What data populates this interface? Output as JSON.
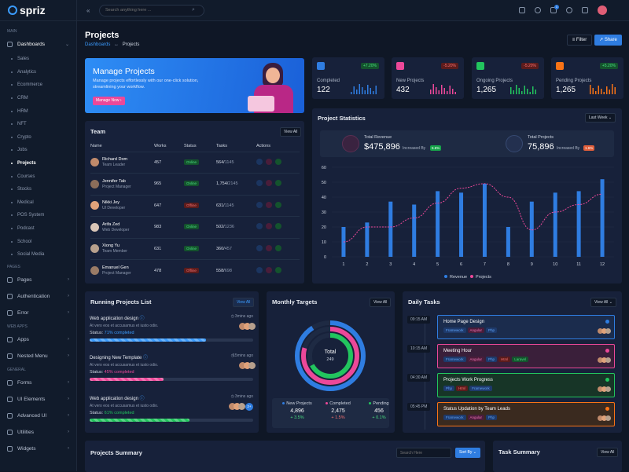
{
  "brand": "spriz",
  "search": {
    "placeholder": "Search anything here ..."
  },
  "sidebar": {
    "sections": [
      "MAIN",
      "PAGES",
      "WEB APPS",
      "GENERAL"
    ],
    "dashboards": "Dashboards",
    "sub": [
      "Sales",
      "Analytics",
      "Ecommerce",
      "CRM",
      "HRM",
      "NFT",
      "Crypto",
      "Jobs",
      "Projects",
      "Courses",
      "Stocks",
      "Medical",
      "POS System",
      "Podcast",
      "School",
      "Social Media"
    ],
    "pages": [
      "Pages",
      "Authentication",
      "Error"
    ],
    "apps": [
      "Apps",
      "Nested Menu"
    ],
    "general": [
      "Forms",
      "UI Elements",
      "Advanced UI",
      "Utilities",
      "Widgets"
    ]
  },
  "header": {
    "title": "Projects",
    "crumb1": "Dashboards",
    "crumb_sep": "↔",
    "crumb2": "Projects",
    "filter": "Filter",
    "share": "Share",
    "notif_count": "1"
  },
  "banner": {
    "title": "Manage Projects",
    "desc": "Manage projects effortlessly with our one-click solution, streamlining your workflow.",
    "btn": "Manage Now"
  },
  "stats": [
    {
      "label": "Completed",
      "value": "122",
      "change": "+7.20%",
      "color": "#2f7de1",
      "up": true
    },
    {
      "label": "New Projects",
      "value": "432",
      "change": "-5.20%",
      "color": "#ec4899",
      "up": false
    },
    {
      "label": "Ongoing Projects",
      "value": "1,265",
      "change": "-5.20%",
      "color": "#22c55e",
      "up": false
    },
    {
      "label": "Pending Projects",
      "value": "1,265",
      "change": "+5.20%",
      "color": "#f97316",
      "up": true
    }
  ],
  "team": {
    "title": "Team",
    "view_all": "View All",
    "cols": [
      "Name",
      "Works",
      "Status",
      "Tasks",
      "Actions"
    ],
    "rows": [
      {
        "name": "Richard Dom",
        "role": "Team Leader",
        "works": "457",
        "status": "Online",
        "done": "564/",
        "total": "1145"
      },
      {
        "name": "Jennifer Tab",
        "role": "Project Manager",
        "works": "965",
        "status": "Online",
        "done": "1,754/",
        "total": "2145"
      },
      {
        "name": "Nikki Jey",
        "role": "UI Developer",
        "works": "647",
        "status": "Offline",
        "done": "631/",
        "total": "1145"
      },
      {
        "name": "Arifa Zed",
        "role": "Web Developer",
        "works": "983",
        "status": "Online",
        "done": "502/",
        "total": "1236"
      },
      {
        "name": "Xiong Yu",
        "role": "Team Member",
        "works": "631",
        "status": "Online",
        "done": "360/",
        "total": "457"
      },
      {
        "name": "Emanuel Gen",
        "role": "Project Manager",
        "works": "478",
        "status": "Offline",
        "done": "558/",
        "total": "698"
      }
    ]
  },
  "stats_panel": {
    "title": "Project Statistics",
    "period": "Last Week",
    "rev_label": "Total Revenue",
    "rev_value": "$475,896",
    "rev_inc": "Increased By",
    "rev_pct": "5.6%",
    "proj_label": "Total Projects",
    "proj_value": "75,896",
    "proj_inc": "Increased By",
    "proj_pct": "1.6%"
  },
  "chart_data": {
    "type": "bar",
    "x": [
      1,
      2,
      3,
      4,
      5,
      6,
      7,
      8,
      9,
      10,
      11,
      12
    ],
    "ylim": [
      0,
      60
    ],
    "yticks": [
      0,
      10,
      20,
      30,
      40,
      50,
      60
    ],
    "series": [
      {
        "name": "Revenue",
        "type": "bar",
        "values": [
          20,
          23,
          37,
          35,
          44,
          43,
          49,
          20,
          37,
          43,
          44,
          52
        ]
      },
      {
        "name": "Projects",
        "type": "line",
        "values": [
          10,
          20,
          20,
          26,
          36,
          46,
          49,
          40,
          18,
          30,
          35,
          42
        ]
      }
    ]
  },
  "running": {
    "title": "Running Projects List",
    "view_all": "View All",
    "status_label": "Status:",
    "items": [
      {
        "title": "Web application design",
        "ago": "3mins ago",
        "desc": "At vero eos et accusamus et iusto odio.",
        "status": "71% completed",
        "pct": 71,
        "color": "#3b9cff"
      },
      {
        "title": "Designing New Template",
        "ago": "15mins ago",
        "desc": "At vero eos et accusamus et iusto odio.",
        "status": "45% completed",
        "pct": 45,
        "color": "#ec4899"
      },
      {
        "title": "Web application design",
        "ago": "3mins ago",
        "desc": "At vero eos et accusamus et iusto odio.",
        "status": "61% completed",
        "pct": 61,
        "color": "#22c55e",
        "extra": "2+"
      }
    ]
  },
  "targets": {
    "title": "Monthly Targets",
    "view_all": "View All",
    "center_label": "Total",
    "center_value": "249",
    "items": [
      {
        "label": "New Projects",
        "value": "4,896",
        "change": "+ 3.5%",
        "color": "#2f7de1"
      },
      {
        "label": "Completed",
        "value": "2,475",
        "change": "+ 1.5%",
        "color": "#ec4899"
      },
      {
        "label": "Pending",
        "value": "456",
        "change": "+ 0.1%",
        "color": "#22c55e"
      }
    ]
  },
  "daily": {
    "title": "Daily Tasks",
    "view_all": "View All",
    "items": [
      {
        "time": "09:15 AM",
        "title": "Home Page Design",
        "tags": [
          "Framework",
          "Angular",
          "Php"
        ],
        "bg": "#1b2c4d",
        "border": "#2f7de1",
        "dot": "#2f7de1"
      },
      {
        "time": "10:15 AM",
        "title": "Meeting Hour",
        "tags": [
          "Framework",
          "Angular",
          "Php",
          "Html",
          "Laravel"
        ],
        "bg": "#3a1f3a",
        "border": "#ec4899",
        "dot": "#ec4899"
      },
      {
        "time": "04:30 AM",
        "title": "Projects Work Progress",
        "tags": [
          "Php",
          "Html",
          "Framework"
        ],
        "bg": "#173527",
        "border": "#22c55e",
        "dot": "#22c55e"
      },
      {
        "time": "05:45 PM",
        "title": "Status Updation by Team Leads",
        "tags": [
          "Framework",
          "Angular",
          "Php"
        ],
        "bg": "#3a2a1f",
        "border": "#f97316",
        "dot": "#f97316"
      }
    ]
  },
  "summary": {
    "title": "Projects Summary",
    "search_placeholder": "Search Here",
    "sort": "Sort By"
  },
  "task_summary": {
    "title": "Task Summary",
    "view_all": "View All"
  }
}
